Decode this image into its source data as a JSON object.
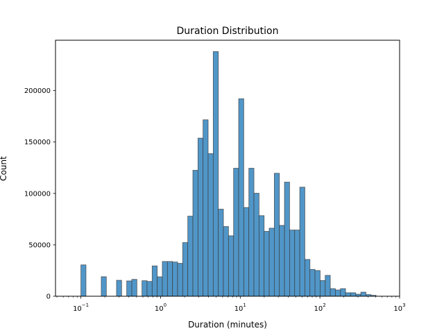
{
  "chart_data": {
    "type": "bar",
    "title": "Duration Distribution",
    "xlabel": "Duration (minutes)",
    "ylabel": "Count",
    "x_scale": "log",
    "xlim": [
      0.048,
      1000
    ],
    "ylim": [
      0,
      249000
    ],
    "bin_range": [
      0.1,
      507
    ],
    "bins": 58,
    "counts": [
      30500,
      0,
      0,
      0,
      19000,
      0,
      0,
      15500,
      0,
      14900,
      16400,
      0,
      15100,
      14400,
      29500,
      18900,
      33800,
      33800,
      33300,
      32000,
      52200,
      77900,
      122500,
      153800,
      171600,
      138700,
      238000,
      84700,
      67800,
      58800,
      124500,
      192100,
      86300,
      124500,
      100200,
      78400,
      63100,
      66200,
      119600,
      68900,
      111000,
      64400,
      64400,
      106100,
      35800,
      26100,
      25000,
      15300,
      20300,
      7400,
      6100,
      7400,
      3400,
      3400,
      2000,
      4000,
      1600,
      900
    ],
    "x_ticks": [
      {
        "value": 0.1,
        "base": "10",
        "exp": "−1"
      },
      {
        "value": 1,
        "base": "10",
        "exp": "0"
      },
      {
        "value": 10,
        "base": "10",
        "exp": "1"
      },
      {
        "value": 100,
        "base": "10",
        "exp": "2"
      },
      {
        "value": 1000,
        "base": "10",
        "exp": "3"
      }
    ],
    "y_ticks": [
      {
        "value": 0,
        "label": "0"
      },
      {
        "value": 50000,
        "label": "50000"
      },
      {
        "value": 100000,
        "label": "100000"
      },
      {
        "value": 150000,
        "label": "150000"
      },
      {
        "value": 200000,
        "label": "200000"
      }
    ],
    "grid": false,
    "legend": "none",
    "colors": {
      "bar_fill": "#5196c8",
      "bar_edge": "#3a3a3a"
    }
  }
}
